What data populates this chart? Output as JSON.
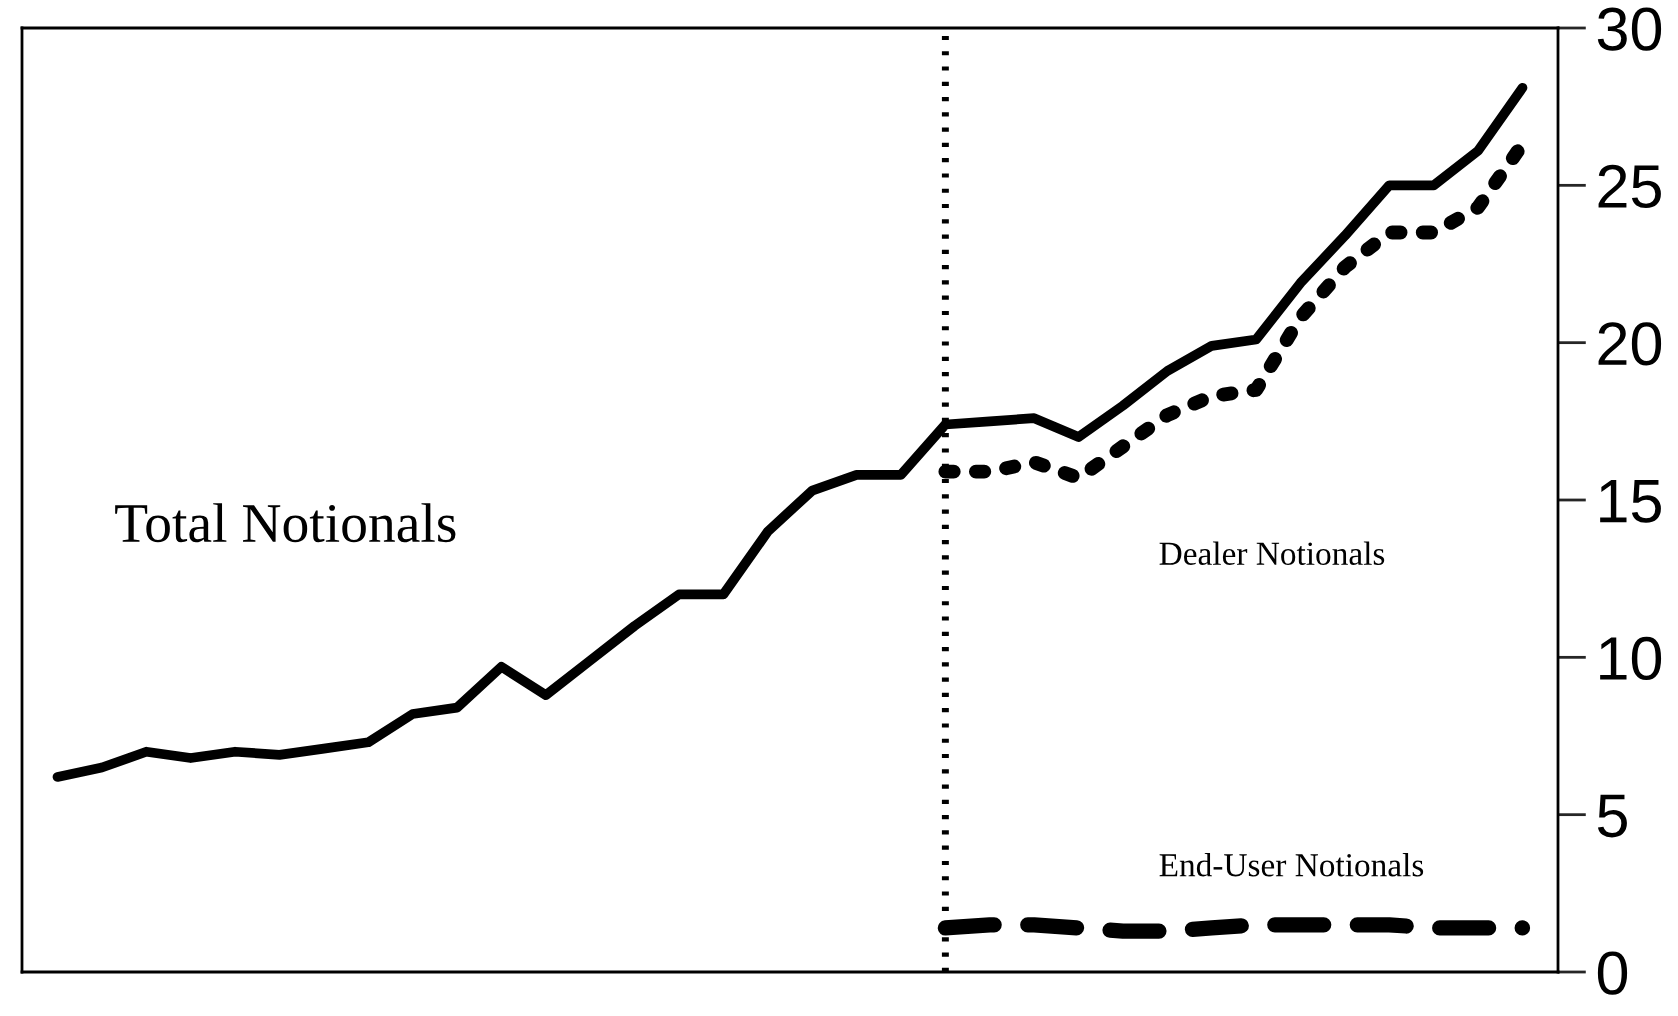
{
  "chart_data": {
    "type": "line",
    "categories": [
      null,
      null,
      null,
      null,
      null,
      null,
      null,
      null,
      null,
      null,
      null,
      null,
      null,
      null,
      null,
      null,
      null,
      null,
      null,
      null,
      null,
      null,
      null,
      null,
      null,
      null,
      null,
      null,
      null,
      null,
      null,
      null,
      null,
      null
    ],
    "series": [
      {
        "name": "Total Notionals",
        "color": "#000000",
        "line_style": "solid",
        "values": [
          6.2,
          6.5,
          7.0,
          6.8,
          7.0,
          6.9,
          7.1,
          7.3,
          8.2,
          8.4,
          9.7,
          8.8,
          9.9,
          11.0,
          12.0,
          12.0,
          14.0,
          15.3,
          15.8,
          15.8,
          17.4,
          17.5,
          17.6,
          17.0,
          18.0,
          19.1,
          19.9,
          20.1,
          21.9,
          23.4,
          25.0,
          25.0,
          26.1,
          28.1
        ]
      },
      {
        "name": "Dealer Notionals",
        "color": "#000000",
        "line_style": "dotted",
        "values": [
          null,
          null,
          null,
          null,
          null,
          null,
          null,
          null,
          null,
          null,
          null,
          null,
          null,
          null,
          null,
          null,
          null,
          null,
          null,
          null,
          15.9,
          15.9,
          16.2,
          15.7,
          16.7,
          17.7,
          18.3,
          18.5,
          20.8,
          22.4,
          23.5,
          23.5,
          24.3,
          26.3
        ]
      },
      {
        "name": "End-User Notionals",
        "color": "#000000",
        "line_style": "dashed",
        "values": [
          null,
          null,
          null,
          null,
          null,
          null,
          null,
          null,
          null,
          null,
          null,
          null,
          null,
          null,
          null,
          null,
          null,
          null,
          null,
          null,
          1.4,
          1.5,
          1.5,
          1.4,
          1.3,
          1.3,
          1.4,
          1.5,
          1.5,
          1.5,
          1.5,
          1.4,
          1.4,
          1.4
        ]
      }
    ],
    "ylim": [
      0,
      30
    ],
    "yticks": [
      0,
      5,
      10,
      15,
      20,
      25,
      30
    ],
    "tick_labels": "y",
    "grid": false,
    "legend": false,
    "marker": "none"
  }
}
